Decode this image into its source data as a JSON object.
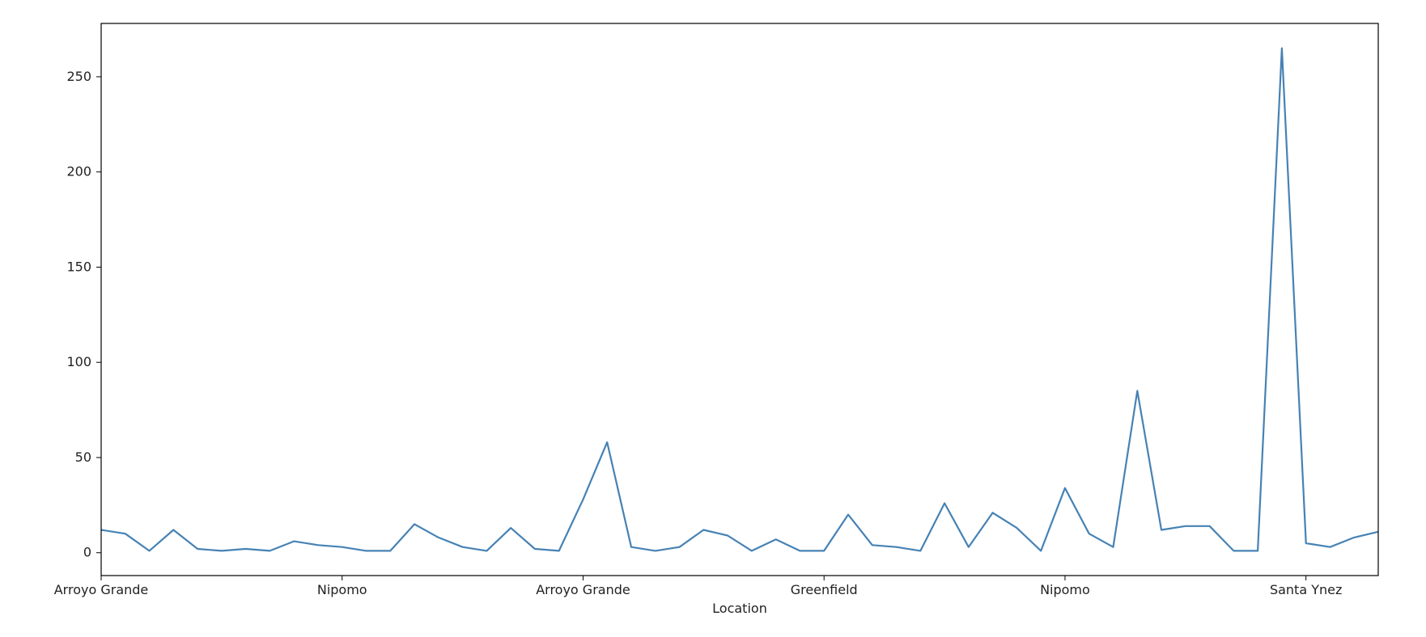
{
  "chart_data": {
    "type": "line",
    "title": "",
    "xlabel": "Location",
    "ylabel": "",
    "grid": false,
    "legend": "none",
    "color": "#4682b4",
    "ylim": [
      -12,
      278
    ],
    "yticks": [
      0,
      50,
      100,
      150,
      200,
      250
    ],
    "xticks": [
      {
        "index": 0,
        "label": "Arroyo Grande"
      },
      {
        "index": 10,
        "label": "Nipomo"
      },
      {
        "index": 20,
        "label": "Arroyo Grande"
      },
      {
        "index": 30,
        "label": "Greenfield"
      },
      {
        "index": 40,
        "label": "Nipomo"
      },
      {
        "index": 50,
        "label": "Santa Ynez"
      }
    ],
    "x_count": 54,
    "values": [
      12,
      10,
      1,
      12,
      2,
      1,
      2,
      1,
      6,
      4,
      3,
      1,
      1,
      15,
      8,
      3,
      1,
      13,
      2,
      1,
      28,
      58,
      3,
      1,
      3,
      12,
      9,
      1,
      7,
      1,
      1,
      20,
      4,
      3,
      1,
      26,
      3,
      21,
      13,
      1,
      34,
      10,
      3,
      85,
      12,
      14,
      14,
      1,
      1,
      265,
      5,
      3,
      8,
      11
    ]
  }
}
